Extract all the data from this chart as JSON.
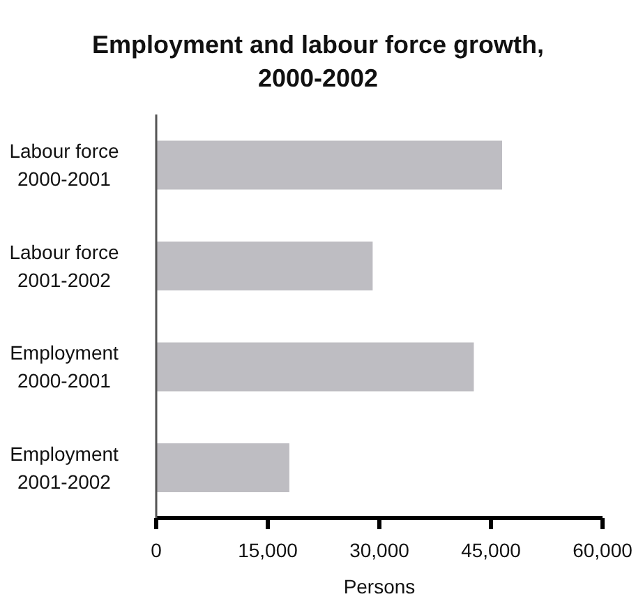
{
  "chart_data": {
    "type": "bar",
    "orientation": "horizontal",
    "title": "Employment and labour force growth, 2000-2002",
    "xlabel": "Persons",
    "categories": [
      "Labour force 2000-2001",
      "Labour force 2001-2002",
      "Employment 2000-2001",
      "Employment 2001-2002"
    ],
    "values": [
      46500,
      29100,
      42700,
      17900
    ],
    "color": "#bebdc2",
    "xlim": [
      0,
      60000
    ],
    "xticks": [
      0,
      {
        "value": 15000,
        "label": "15,000"
      },
      {
        "value": 30000,
        "label": "30,000"
      },
      {
        "value": 45000,
        "label": "45,000"
      },
      {
        "value": 60000,
        "label": "60,000"
      }
    ],
    "grid": false
  }
}
